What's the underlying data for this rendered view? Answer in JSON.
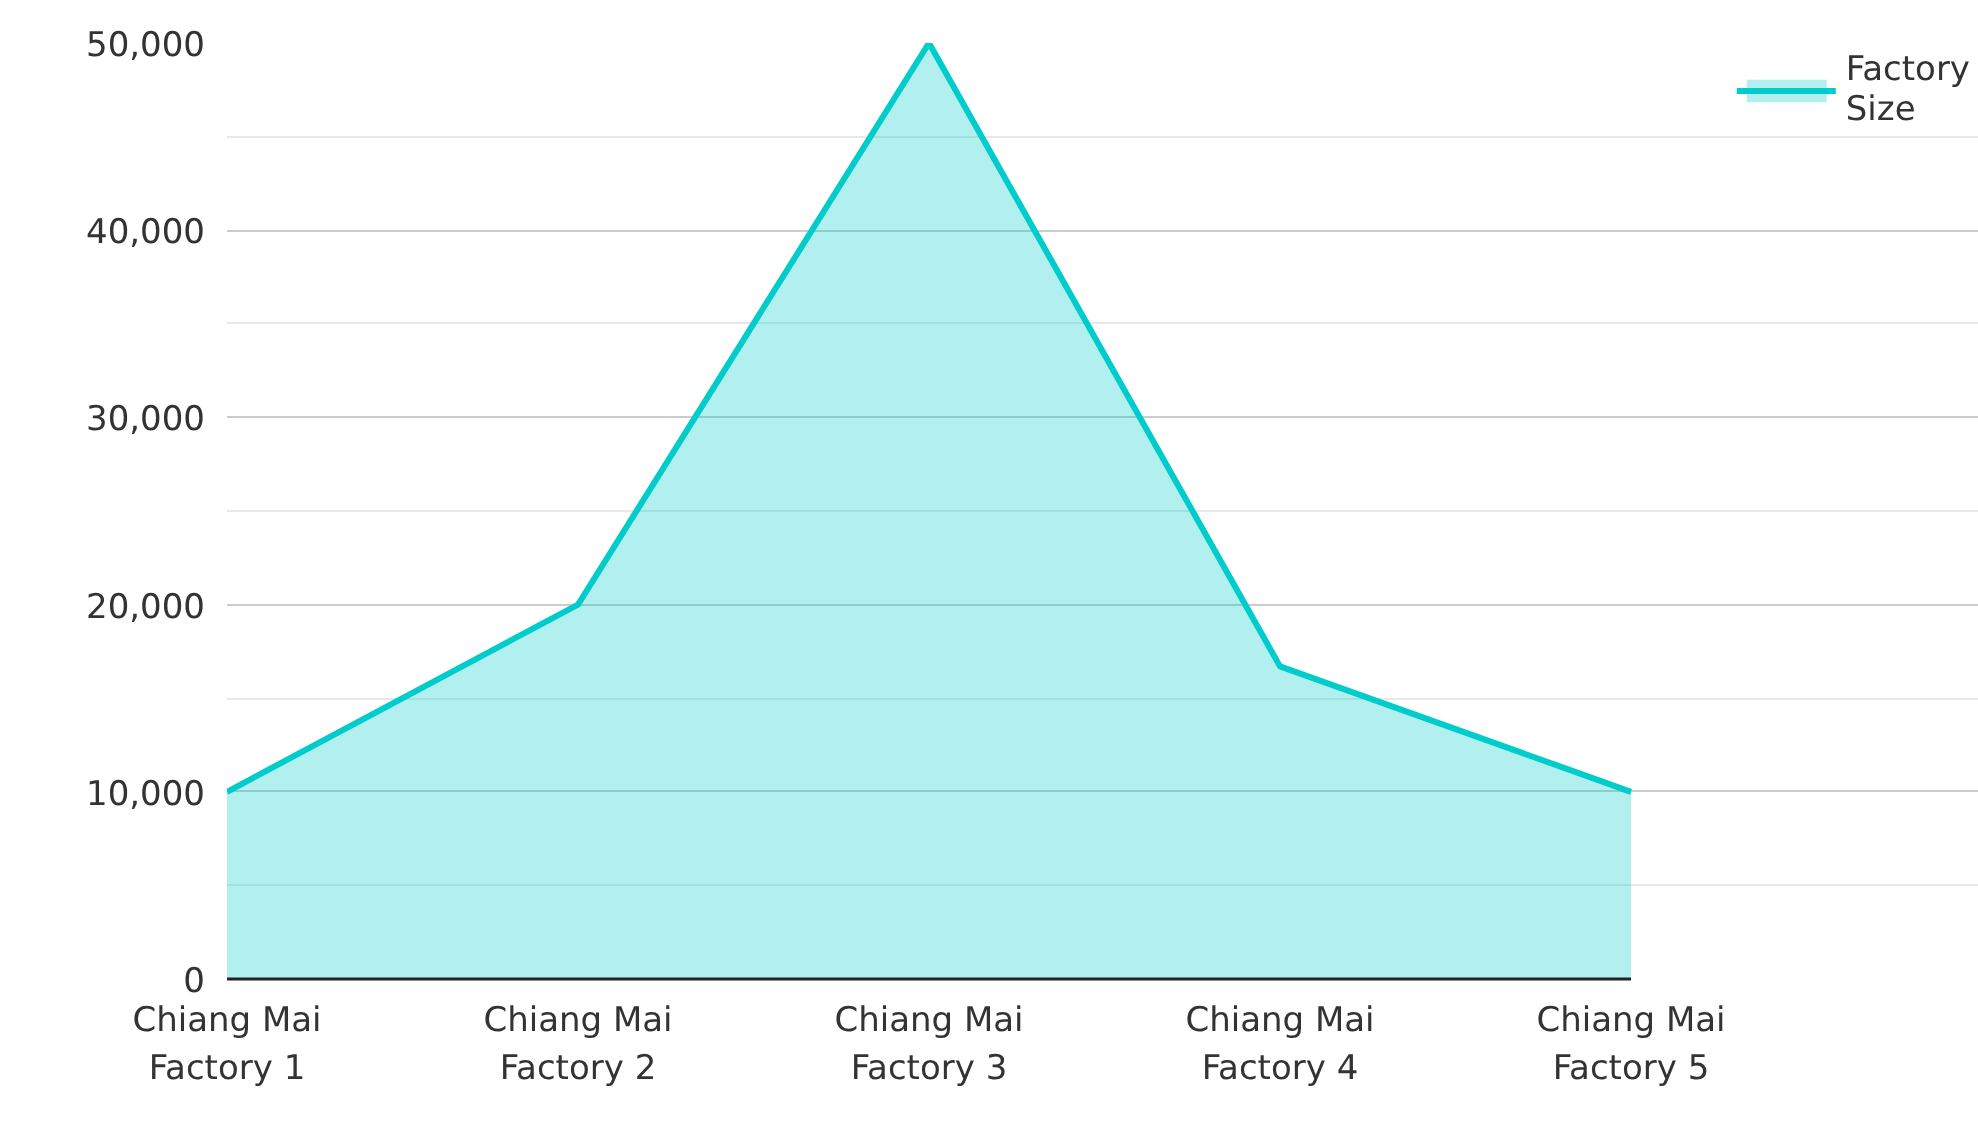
{
  "chart_data": {
    "type": "area",
    "categories": [
      "Chiang Mai Factory 1",
      "Chiang Mai Factory 2",
      "Chiang Mai Factory 3",
      "Chiang Mai Factory 4",
      "Chiang Mai Factory 5"
    ],
    "series": [
      {
        "name": "Factory Size",
        "color": "#00cccc",
        "values": [
          10000,
          20000,
          50000,
          16700,
          10000
        ]
      }
    ],
    "ylim": [
      0,
      50000
    ],
    "yticks": [
      {
        "value": 0,
        "label": "0"
      },
      {
        "value": 5000,
        "label": null
      },
      {
        "value": 10000,
        "label": "10,000"
      },
      {
        "value": 15000,
        "label": null
      },
      {
        "value": 20000,
        "label": "20,000"
      },
      {
        "value": 25000,
        "label": null
      },
      {
        "value": 30000,
        "label": "30,000"
      },
      {
        "value": 35000,
        "label": null
      },
      {
        "value": 40000,
        "label": "40,000"
      },
      {
        "value": 45000,
        "label": null
      },
      {
        "value": 50000,
        "label": "50,000"
      }
    ],
    "grid": "y",
    "legend": "top right"
  }
}
